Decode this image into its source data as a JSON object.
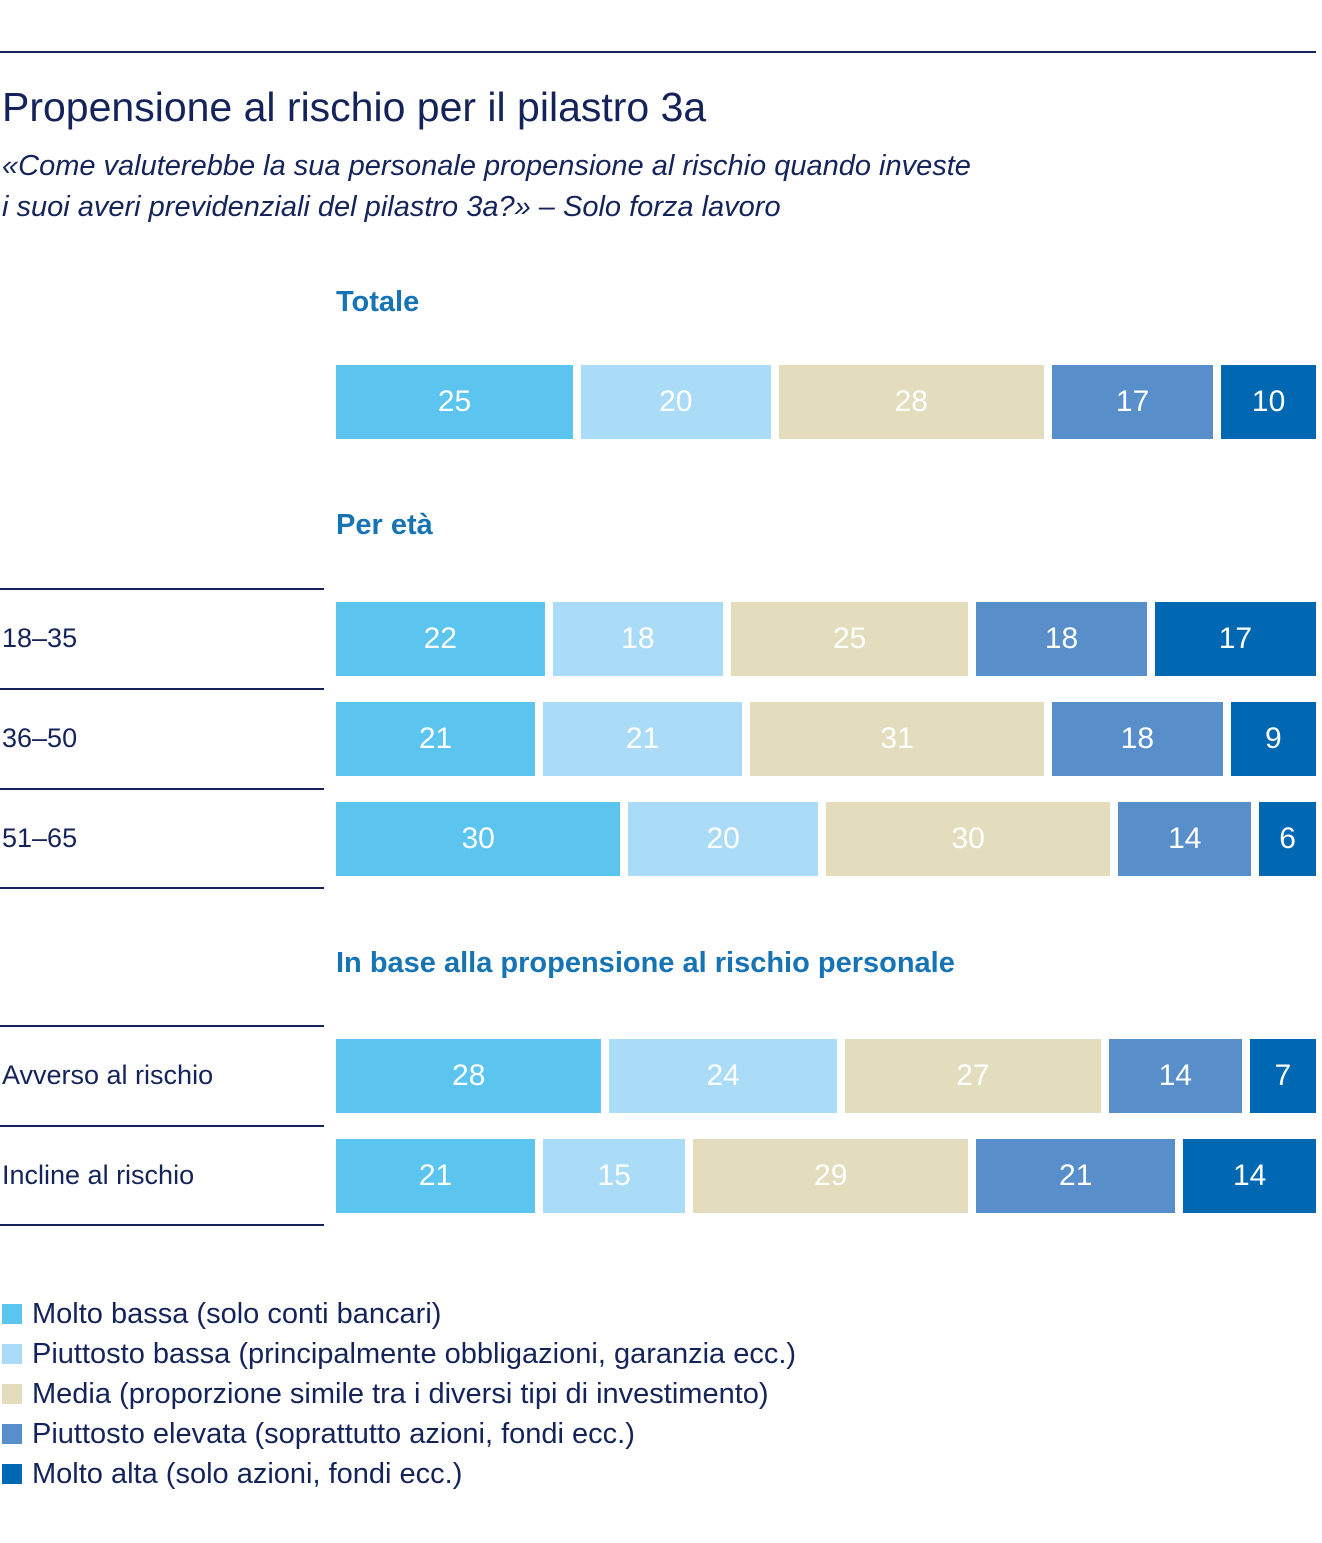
{
  "title": "Propensione al rischio per il pilastro 3a",
  "subtitle_line1": "«Come valuterebbe la sua personale propensione al rischio quando investe",
  "subtitle_line2": "i suoi averi previdenziali del pilastro 3a?» – Solo forza lavoro",
  "colors": {
    "text_dark": "#14235a",
    "section": "#1673b4",
    "series": [
      "#5bc5ef",
      "#abdcf7",
      "#e3ddbd",
      "#588fcb",
      "#0068b2"
    ]
  },
  "chart_data": {
    "type": "bar",
    "orientation": "horizontal",
    "stacked": true,
    "unit": "%",
    "series_names": [
      "Molto bassa (solo conti bancari)",
      "Piuttosto bassa (principalmente obbligazioni, garanzia ecc.)",
      "Media (proporzione simile tra i diversi tipi di investimento)",
      "Piuttosto elevata (soprattutto azioni, fondi ecc.)",
      "Molto alta (solo azioni, fondi ecc.)"
    ],
    "groups": [
      {
        "title": "Totale",
        "rows": [
          {
            "label": "",
            "values": [
              25,
              20,
              28,
              17,
              10
            ]
          }
        ]
      },
      {
        "title": "Per età",
        "rows": [
          {
            "label": "18–35",
            "values": [
              22,
              18,
              25,
              18,
              17
            ]
          },
          {
            "label": "36–50",
            "values": [
              21,
              21,
              31,
              18,
              9
            ]
          },
          {
            "label": "51–65",
            "values": [
              30,
              20,
              30,
              14,
              6
            ]
          }
        ]
      },
      {
        "title": "In base alla propensione al rischio personale",
        "rows": [
          {
            "label": "Avverso al rischio",
            "values": [
              28,
              24,
              27,
              14,
              7
            ]
          },
          {
            "label": "Incline al rischio",
            "values": [
              21,
              15,
              29,
              21,
              14
            ]
          }
        ]
      }
    ],
    "legend_position": "bottom-left"
  }
}
